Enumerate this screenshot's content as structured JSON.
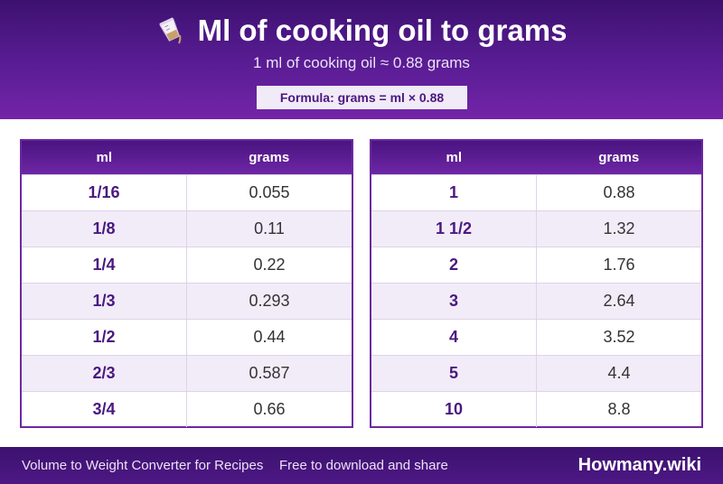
{
  "header": {
    "title": "Ml of cooking oil to grams",
    "icon": "measuring-cup-pour-icon",
    "subtitle": "1 ml of cooking oil ≈ 0.88 grams",
    "formula": "Formula: grams = ml × 0.88"
  },
  "tables": {
    "left": {
      "col_ml": "ml",
      "col_grams": "grams",
      "rows": [
        {
          "ml": "1/16",
          "grams": "0.055"
        },
        {
          "ml": "1/8",
          "grams": "0.11"
        },
        {
          "ml": "1/4",
          "grams": "0.22"
        },
        {
          "ml": "1/3",
          "grams": "0.293"
        },
        {
          "ml": "1/2",
          "grams": "0.44"
        },
        {
          "ml": "2/3",
          "grams": "0.587"
        },
        {
          "ml": "3/4",
          "grams": "0.66"
        }
      ]
    },
    "right": {
      "col_ml": "ml",
      "col_grams": "grams",
      "rows": [
        {
          "ml": "1",
          "grams": "0.88"
        },
        {
          "ml": "1 1/2",
          "grams": "1.32"
        },
        {
          "ml": "2",
          "grams": "1.76"
        },
        {
          "ml": "3",
          "grams": "2.64"
        },
        {
          "ml": "4",
          "grams": "3.52"
        },
        {
          "ml": "5",
          "grams": "4.4"
        },
        {
          "ml": "10",
          "grams": "8.8"
        }
      ]
    }
  },
  "footer": {
    "left_text": "Volume to Weight Converter for Recipes",
    "mid_text": "Free to download and share",
    "brand": "Howmany.wiki"
  },
  "colors": {
    "header_dark": "#3d1170",
    "header_light": "#7424a8",
    "accent": "#4a1880",
    "row_alt": "#f2ecf8"
  }
}
